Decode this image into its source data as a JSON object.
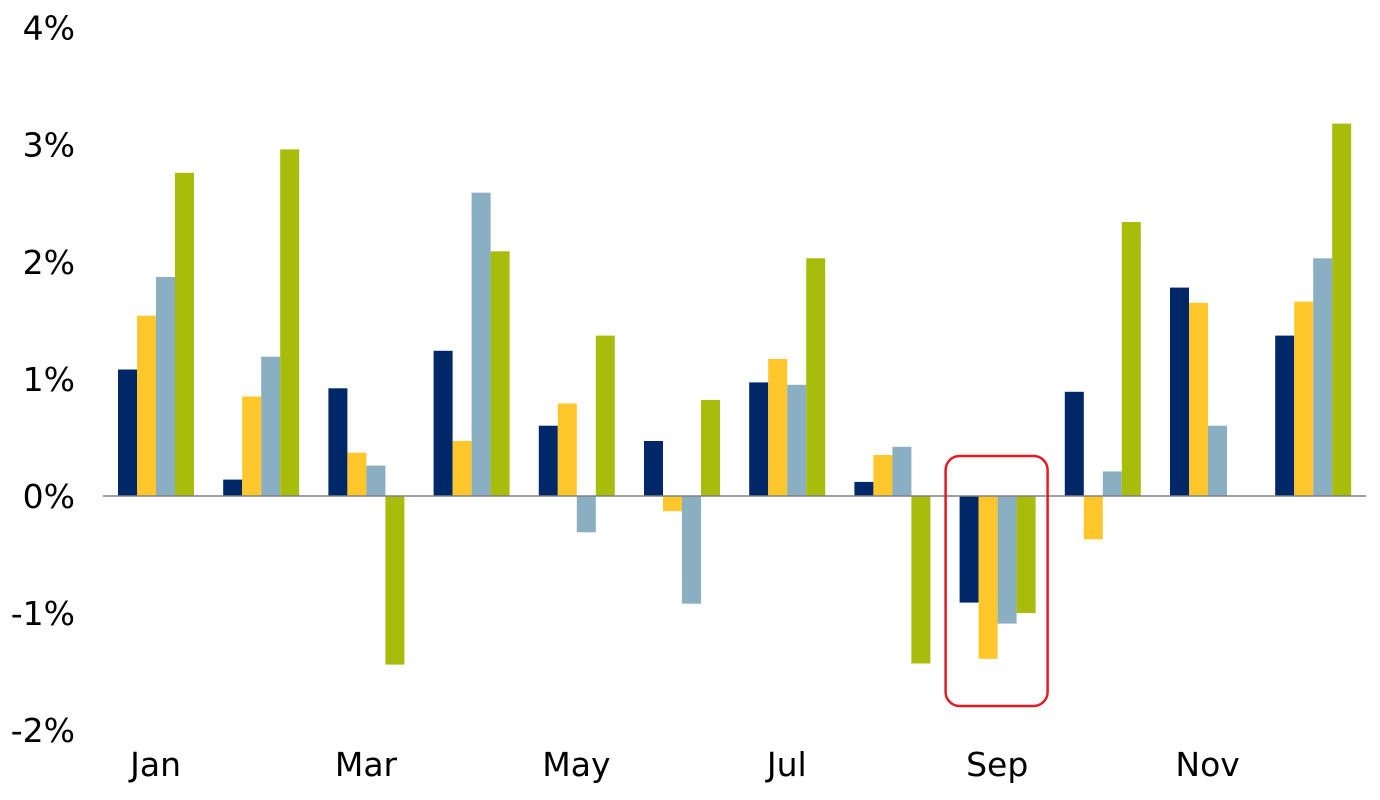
{
  "chart_data": {
    "type": "bar",
    "categories": [
      "Jan",
      "Feb",
      "Mar",
      "Apr",
      "May",
      "Jun",
      "Jul",
      "Aug",
      "Sep",
      "Oct",
      "Nov",
      "Dec"
    ],
    "category_labels": [
      "Jan",
      "",
      "Mar",
      "",
      "May",
      "",
      "Jul",
      "",
      "Sep",
      "",
      "Nov",
      ""
    ],
    "series": [
      {
        "color": "#002868",
        "values": [
          1.08,
          0.14,
          0.92,
          1.24,
          0.6,
          0.47,
          0.97,
          0.12,
          -0.91,
          0.89,
          1.78,
          1.37
        ]
      },
      {
        "color": "#FFC72C",
        "values": [
          1.54,
          0.85,
          0.37,
          0.47,
          0.79,
          -0.13,
          1.17,
          0.35,
          -1.39,
          -0.37,
          1.65,
          1.66
        ]
      },
      {
        "color": "#8AAFC3",
        "values": [
          1.87,
          1.19,
          0.26,
          2.59,
          -0.31,
          -0.92,
          0.95,
          0.42,
          -1.09,
          0.21,
          0.6,
          2.03
        ]
      },
      {
        "color": "#A8BC0C",
        "values": [
          2.76,
          2.96,
          -1.44,
          2.09,
          1.37,
          0.82,
          2.03,
          -1.43,
          -1.0,
          2.34,
          null,
          3.18
        ]
      }
    ],
    "y_ticks": [
      {
        "value": 4,
        "label": "4%"
      },
      {
        "value": 3,
        "label": "3%"
      },
      {
        "value": 2,
        "label": "2%"
      },
      {
        "value": 1,
        "label": "1%"
      },
      {
        "value": 0,
        "label": "0%"
      },
      {
        "value": -1,
        "label": "-1%"
      },
      {
        "value": -2,
        "label": "-2%"
      }
    ],
    "ylim": [
      -2,
      4
    ],
    "grid": false,
    "legend": "none",
    "highlight": {
      "category": "Sep",
      "color": "#E31B23"
    },
    "axis_color": "#808080"
  }
}
